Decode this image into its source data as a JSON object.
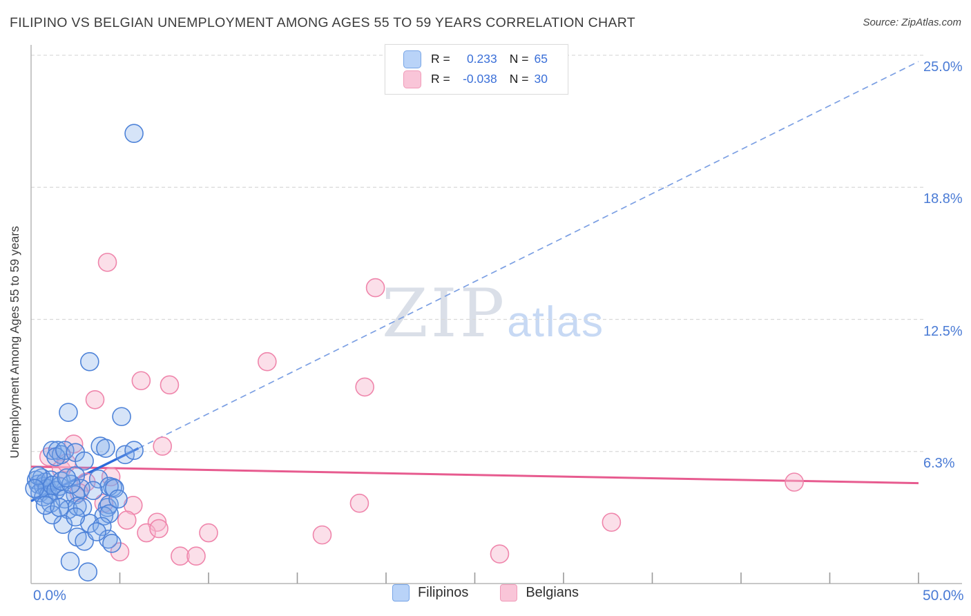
{
  "header": {
    "title": "FILIPINO VS BELGIAN UNEMPLOYMENT AMONG AGES 55 TO 59 YEARS CORRELATION CHART",
    "source": "Source: ZipAtlas.com"
  },
  "watermark": {
    "zip": "ZIP",
    "atlas": "atlas"
  },
  "legend_box": {
    "rows": [
      {
        "series": "Filipinos",
        "r_label": "R =",
        "r_value": "0.233",
        "n_label": "N =",
        "n_value": "65"
      },
      {
        "series": "Belgians",
        "r_label": "R =",
        "r_value": "-0.038",
        "n_label": "N =",
        "n_value": "30"
      }
    ]
  },
  "axes": {
    "y_label": "Unemployment Among Ages 55 to 59 years",
    "x_min_label": "0.0%",
    "x_max_label": "50.0%",
    "x_min": 0,
    "x_max": 50,
    "y_min": 0,
    "y_max": 25.5,
    "y_ticks": [
      {
        "label": "25.0%",
        "value": 25.0
      },
      {
        "label": "18.8%",
        "value": 18.75
      },
      {
        "label": "12.5%",
        "value": 12.5
      },
      {
        "label": "6.3%",
        "value": 6.25
      }
    ],
    "x_tick_values": [
      5,
      10,
      15,
      20,
      25,
      30,
      35,
      40,
      45,
      50
    ],
    "grid": "dashed horizontal only"
  },
  "bottom_legend": [
    {
      "label": "Filipinos",
      "color": "blue"
    },
    {
      "label": "Belgians",
      "color": "pink"
    }
  ],
  "colors": {
    "blue_stroke": "#4d82d8",
    "blue_fill": "#7faae8",
    "pink_stroke": "#ef85ab",
    "pink_fill": "#f6b8cf",
    "blue_trend": "#2e6bdb",
    "blue_trend_dashed": "#7b9fe3",
    "pink_trend": "#e75b8f",
    "grid": "#d9d9d9",
    "axis": "#b5b5b5",
    "tick": "#9a9a9a",
    "label_blue": "#4a7bd5"
  },
  "chart_data": {
    "type": "scatter",
    "title": "Filipino vs Belgian Unemployment Among Ages 55 to 59 years",
    "xlabel_range": [
      0,
      50
    ],
    "ylabel": "Unemployment Among Ages 55 to 59 years",
    "units": "percent",
    "legend_position": "top-center and bottom-center",
    "series": [
      {
        "name": "Filipinos",
        "R": 0.233,
        "N": 65,
        "points": [
          [
            5.8,
            21.3
          ],
          [
            3.3,
            10.5
          ],
          [
            2.1,
            8.1
          ],
          [
            5.1,
            7.9
          ],
          [
            1.2,
            6.3
          ],
          [
            1.5,
            6.3
          ],
          [
            1.7,
            6.1
          ],
          [
            1.4,
            6.0
          ],
          [
            1.9,
            6.3
          ],
          [
            2.5,
            6.2
          ],
          [
            3.9,
            6.5
          ],
          [
            4.2,
            6.4
          ],
          [
            5.3,
            6.1
          ],
          [
            3.0,
            5.8
          ],
          [
            5.8,
            6.3
          ],
          [
            0.3,
            4.9
          ],
          [
            0.4,
            4.7
          ],
          [
            0.6,
            5.0
          ],
          [
            0.7,
            4.6
          ],
          [
            0.8,
            4.8
          ],
          [
            0.5,
            4.3
          ],
          [
            0.9,
            4.5
          ],
          [
            1.1,
            4.9
          ],
          [
            0.4,
            5.1
          ],
          [
            0.7,
            4.1
          ],
          [
            1.0,
            4.2
          ],
          [
            0.2,
            4.5
          ],
          [
            1.2,
            4.65
          ],
          [
            1.4,
            4.4
          ],
          [
            1.6,
            4.6
          ],
          [
            1.7,
            4.85
          ],
          [
            2.5,
            5.1
          ],
          [
            3.8,
            4.95
          ],
          [
            4.6,
            4.55
          ],
          [
            2.8,
            4.5
          ],
          [
            4.4,
            4.6
          ],
          [
            4.7,
            4.5
          ],
          [
            2.5,
            4.2
          ],
          [
            1.9,
            4.0
          ],
          [
            1.1,
            3.8
          ],
          [
            2.1,
            3.5
          ],
          [
            2.6,
            3.65
          ],
          [
            2.9,
            3.6
          ],
          [
            4.3,
            3.6
          ],
          [
            4.4,
            3.74
          ],
          [
            4.1,
            3.2
          ],
          [
            4.4,
            3.3
          ],
          [
            1.8,
            2.8
          ],
          [
            3.3,
            2.85
          ],
          [
            4.0,
            2.7
          ],
          [
            2.6,
            2.2
          ],
          [
            3.0,
            2.0
          ],
          [
            4.35,
            2.1
          ],
          [
            4.55,
            1.9
          ],
          [
            2.2,
            1.05
          ],
          [
            3.2,
            0.55
          ],
          [
            1.2,
            3.25
          ],
          [
            0.8,
            3.7
          ],
          [
            1.6,
            3.6
          ],
          [
            2.25,
            4.7
          ],
          [
            2.0,
            5.0
          ],
          [
            3.5,
            4.4
          ],
          [
            4.9,
            4.0
          ],
          [
            3.7,
            2.45
          ],
          [
            2.5,
            3.15
          ]
        ],
        "trend_solid": {
          "x": [
            0,
            6.05
          ],
          "y": [
            3.9,
            6.4
          ]
        },
        "trend_dashed_extension": {
          "x": [
            6.05,
            50
          ],
          "y": [
            6.4,
            24.7
          ]
        }
      },
      {
        "name": "Belgians",
        "R": -0.038,
        "N": 30,
        "points": [
          [
            4.3,
            15.2
          ],
          [
            19.4,
            14.0
          ],
          [
            13.3,
            10.5
          ],
          [
            6.2,
            9.6
          ],
          [
            7.8,
            9.4
          ],
          [
            18.8,
            9.3
          ],
          [
            3.6,
            8.7
          ],
          [
            2.4,
            6.6
          ],
          [
            7.4,
            6.5
          ],
          [
            1.7,
            5.4
          ],
          [
            3.1,
            4.8
          ],
          [
            2.7,
            4.3
          ],
          [
            4.1,
            3.8
          ],
          [
            5.75,
            3.7
          ],
          [
            5.4,
            3.0
          ],
          [
            7.1,
            2.9
          ],
          [
            6.5,
            2.4
          ],
          [
            7.2,
            2.6
          ],
          [
            10.0,
            2.4
          ],
          [
            16.4,
            2.3
          ],
          [
            18.5,
            3.8
          ],
          [
            8.4,
            1.3
          ],
          [
            9.3,
            1.3
          ],
          [
            5.0,
            1.5
          ],
          [
            26.4,
            1.4
          ],
          [
            32.7,
            2.9
          ],
          [
            43.0,
            4.8
          ],
          [
            1.0,
            6.0
          ],
          [
            2.0,
            5.7
          ],
          [
            4.5,
            5.05
          ]
        ],
        "trend_solid": {
          "x": [
            0,
            50
          ],
          "y": [
            5.53,
            4.75
          ]
        }
      }
    ]
  }
}
